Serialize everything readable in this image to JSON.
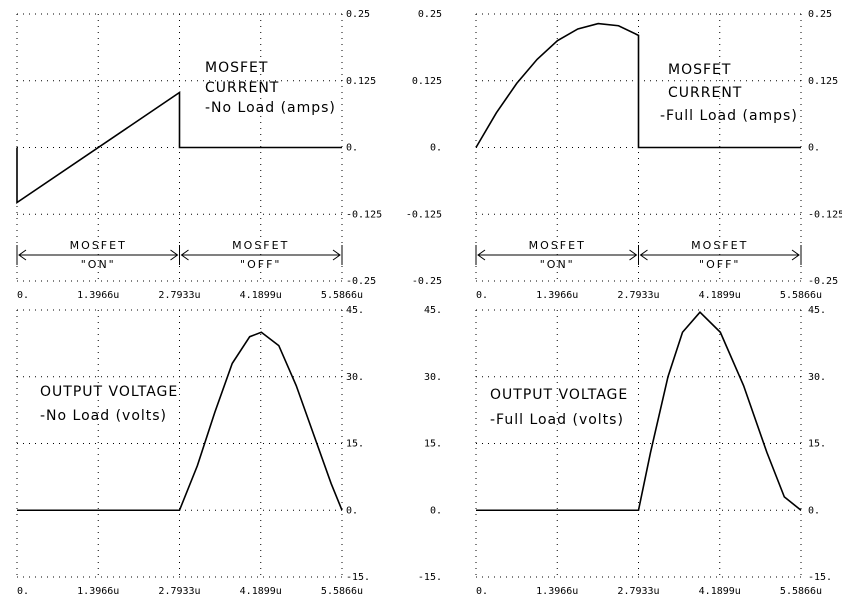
{
  "chart_data": [
    {
      "type": "line",
      "annotations": [
        "MOSFET",
        "CURRENT",
        "-No Load (amps)"
      ],
      "region_labels": [
        "MOSFET",
        "\"ON\"",
        "MOSFET",
        "\"OFF\""
      ],
      "x": [
        0,
        0,
        2.7933,
        2.7933,
        5.5866
      ],
      "values": [
        0,
        -0.103,
        0.103,
        0,
        0
      ],
      "color": "#000000",
      "xlim": [
        0,
        5.5866
      ],
      "xticks": [
        {
          "value": 0,
          "label": "0."
        },
        {
          "value": 1.3966,
          "label": "1.3966u"
        },
        {
          "value": 2.7933,
          "label": "2.7933u"
        },
        {
          "value": 4.1899,
          "label": "4.1899u"
        },
        {
          "value": 5.5866,
          "label": "5.5866u"
        }
      ],
      "ylim": [
        -0.25,
        0.25
      ],
      "yticks": [
        0.25,
        0.125,
        {
          "value": 0,
          "label": "0."
        },
        -0.125,
        -0.25
      ],
      "grid": true
    },
    {
      "type": "line",
      "annotations": [
        "MOSFET",
        "CURRENT",
        "-Full Load (amps)"
      ],
      "region_labels": [
        "MOSFET",
        "\"ON\"",
        "MOSFET",
        "\"OFF\""
      ],
      "x": [
        0,
        0.35,
        0.7,
        1.05,
        1.4,
        1.75,
        2.1,
        2.45,
        2.7933,
        2.7933,
        5.5866
      ],
      "values": [
        0,
        0.065,
        0.12,
        0.165,
        0.2,
        0.222,
        0.232,
        0.228,
        0.21,
        0,
        0
      ],
      "color": "#000000",
      "xlim": [
        0,
        5.5866
      ],
      "xticks": [
        {
          "value": 0,
          "label": "0."
        },
        {
          "value": 1.3966,
          "label": "1.3966u"
        },
        {
          "value": 2.7933,
          "label": "2.7933u"
        },
        {
          "value": 4.1899,
          "label": "4.1899u"
        },
        {
          "value": 5.5866,
          "label": "5.5866u"
        }
      ],
      "ylim": [
        -0.25,
        0.25
      ],
      "yticks": [
        0.25,
        0.125,
        {
          "value": 0,
          "label": "0."
        },
        -0.125,
        -0.25
      ],
      "grid": true
    },
    {
      "type": "line",
      "annotations": [
        "OUTPUT VOLTAGE",
        "-No Load (volts)"
      ],
      "x": [
        0,
        2.7933,
        3.1,
        3.4,
        3.7,
        4.0,
        4.2,
        4.5,
        4.8,
        5.1,
        5.4,
        5.5866
      ],
      "values": [
        0,
        0,
        10,
        22,
        33,
        39,
        40,
        37,
        28,
        17,
        6,
        0
      ],
      "color": "#000000",
      "xlim": [
        0,
        5.5866
      ],
      "xticks": [
        {
          "value": 0,
          "label": "0."
        },
        {
          "value": 1.3966,
          "label": "1.3966u"
        },
        {
          "value": 2.7933,
          "label": "2.7933u"
        },
        {
          "value": 4.1899,
          "label": "4.1899u"
        },
        {
          "value": 5.5866,
          "label": "5.5866u"
        }
      ],
      "ylim": [
        -15,
        45
      ],
      "yticks": [
        {
          "value": 45,
          "label": "45."
        },
        {
          "value": 30,
          "label": "30."
        },
        {
          "value": 15,
          "label": "15."
        },
        {
          "value": 0,
          "label": "0."
        },
        {
          "value": -15,
          "label": "-15."
        }
      ],
      "grid": true
    },
    {
      "type": "line",
      "annotations": [
        "OUTPUT VOLTAGE",
        "-Full Load (volts)"
      ],
      "x": [
        0,
        2.7933,
        3.0,
        3.3,
        3.55,
        3.85,
        4.2,
        4.6,
        5.0,
        5.3,
        5.5866
      ],
      "values": [
        0,
        0,
        13,
        30,
        40,
        44.5,
        40,
        28,
        13,
        3,
        0
      ],
      "color": "#000000",
      "xlim": [
        0,
        5.5866
      ],
      "xticks": [
        {
          "value": 0,
          "label": "0."
        },
        {
          "value": 1.3966,
          "label": "1.3966u"
        },
        {
          "value": 2.7933,
          "label": "2.7933u"
        },
        {
          "value": 4.1899,
          "label": "4.1899u"
        },
        {
          "value": 5.5866,
          "label": "5.5866u"
        }
      ],
      "ylim": [
        -15,
        45
      ],
      "yticks": [
        {
          "value": 45,
          "label": "45."
        },
        {
          "value": 30,
          "label": "30."
        },
        {
          "value": 15,
          "label": "15."
        },
        {
          "value": 0,
          "label": "0."
        },
        {
          "value": -15,
          "label": "-15."
        }
      ],
      "grid": true
    }
  ]
}
